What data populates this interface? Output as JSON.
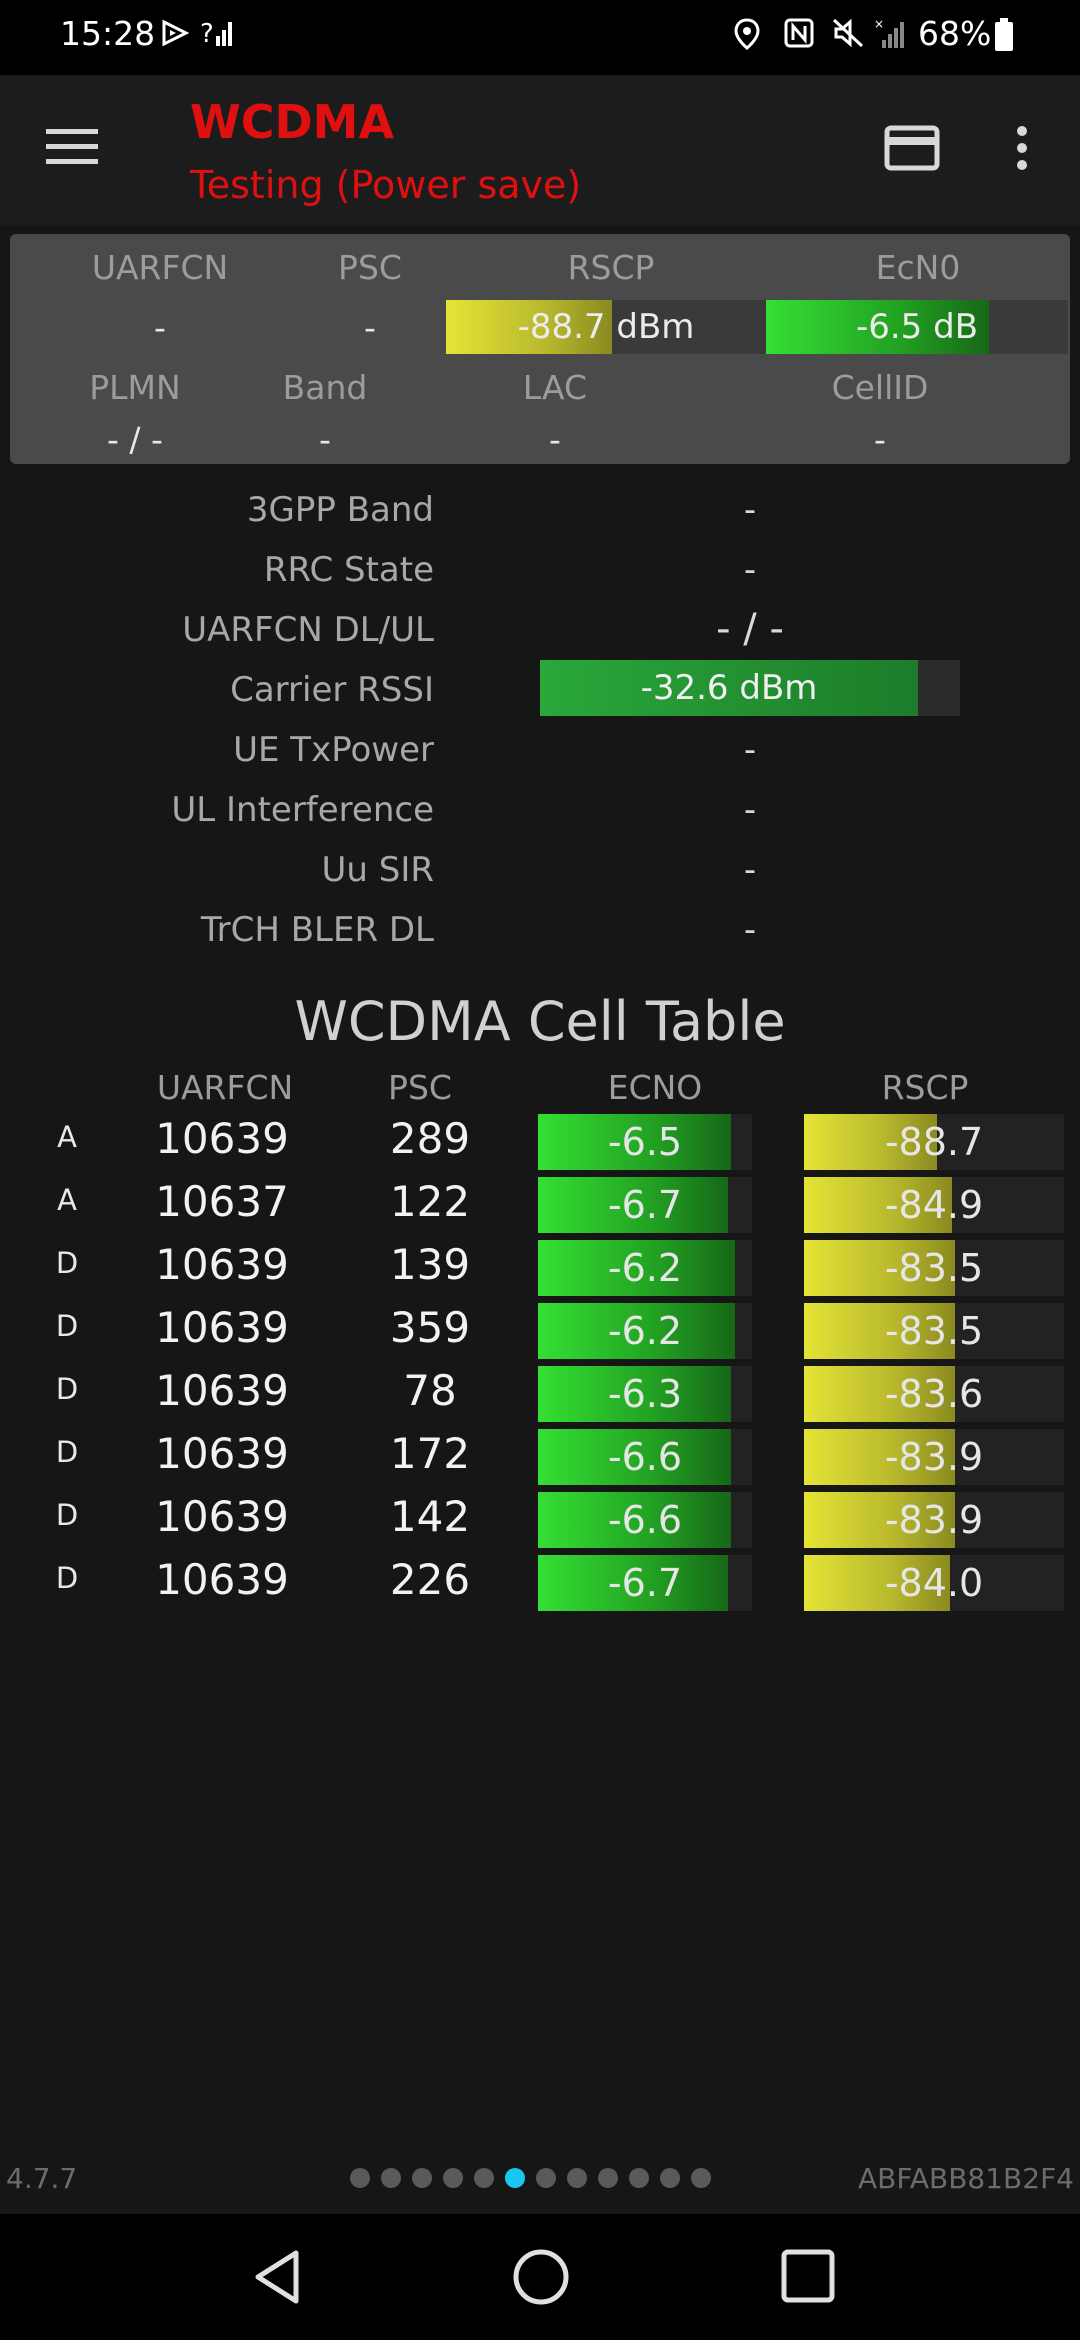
{
  "status_bar": {
    "time": "15:28",
    "battery_percent": "68%",
    "icons": [
      "cast-icon",
      "signal-icon",
      "location-icon",
      "nfc-icon",
      "mute-icon",
      "signal-x-icon",
      "battery-icon"
    ]
  },
  "app_bar": {
    "title": "WCDMA",
    "subtitle": "Testing (Power save)",
    "title_color": "#e01010",
    "icons": [
      "menu-icon",
      "card-icon",
      "more-vert-icon"
    ]
  },
  "summary": {
    "headers": {
      "uarfcn": "UARFCN",
      "psc": "PSC",
      "rscp": "RSCP",
      "ecn0": "EcN0",
      "plmn": "PLMN",
      "band": "Band",
      "lac": "LAC",
      "cellid": "CellID"
    },
    "values": {
      "uarfcn": "-",
      "psc": "-",
      "rscp": "-88.7 dBm",
      "ecn0": "-6.5 dB",
      "plmn": "- / -",
      "band": "-",
      "lac": "-",
      "cellid": "-"
    },
    "rscp_fill": 0.52,
    "ecn0_fill": 0.74
  },
  "details": [
    {
      "label": "3GPP Band",
      "value": "-"
    },
    {
      "label": "RRC State",
      "value": "-"
    },
    {
      "label": "UARFCN DL/UL",
      "value": "- / -"
    },
    {
      "label": "Carrier RSSI",
      "value": "-32.6 dBm"
    },
    {
      "label": "UE TxPower",
      "value": "-"
    },
    {
      "label": "UL Interference",
      "value": "-"
    },
    {
      "label": "Uu SIR",
      "value": "-"
    },
    {
      "label": "TrCH BLER DL",
      "value": "-"
    }
  ],
  "rssi_fill": 0.9,
  "cell_table": {
    "title": "WCDMA Cell Table",
    "headers": {
      "uarfcn": "UARFCN",
      "psc": "PSC",
      "ecno": "ECNO",
      "rscp": "RSCP"
    },
    "rows": [
      {
        "type": "A",
        "uarfcn": "10639",
        "psc": "289",
        "ecno": "-6.5",
        "rscp": "-88.7",
        "ecno_fill": 0.9,
        "rscp_fill": 0.51
      },
      {
        "type": "A",
        "uarfcn": "10637",
        "psc": "122",
        "ecno": "-6.7",
        "rscp": "-84.9",
        "ecno_fill": 0.89,
        "rscp_fill": 0.57
      },
      {
        "type": "D",
        "uarfcn": "10639",
        "psc": "139",
        "ecno": "-6.2",
        "rscp": "-83.5",
        "ecno_fill": 0.92,
        "rscp_fill": 0.58
      },
      {
        "type": "D",
        "uarfcn": "10639",
        "psc": "359",
        "ecno": "-6.2",
        "rscp": "-83.5",
        "ecno_fill": 0.92,
        "rscp_fill": 0.58
      },
      {
        "type": "D",
        "uarfcn": "10639",
        "psc": "78",
        "ecno": "-6.3",
        "rscp": "-83.6",
        "ecno_fill": 0.9,
        "rscp_fill": 0.58
      },
      {
        "type": "D",
        "uarfcn": "10639",
        "psc": "172",
        "ecno": "-6.6",
        "rscp": "-83.9",
        "ecno_fill": 0.9,
        "rscp_fill": 0.58
      },
      {
        "type": "D",
        "uarfcn": "10639",
        "psc": "142",
        "ecno": "-6.6",
        "rscp": "-83.9",
        "ecno_fill": 0.9,
        "rscp_fill": 0.58
      },
      {
        "type": "D",
        "uarfcn": "10639",
        "psc": "226",
        "ecno": "-6.7",
        "rscp": "-84.0",
        "ecno_fill": 0.89,
        "rscp_fill": 0.56
      }
    ]
  },
  "footer": {
    "version": "4.7.7",
    "device_id": "ABFABB81B2F4",
    "page_count": 12,
    "active_page": 6
  },
  "colors": {
    "accent_red": "#e01010",
    "meter_green": "#34e034",
    "meter_yellow": "#e4e436",
    "active_dot": "#18c8f0"
  }
}
